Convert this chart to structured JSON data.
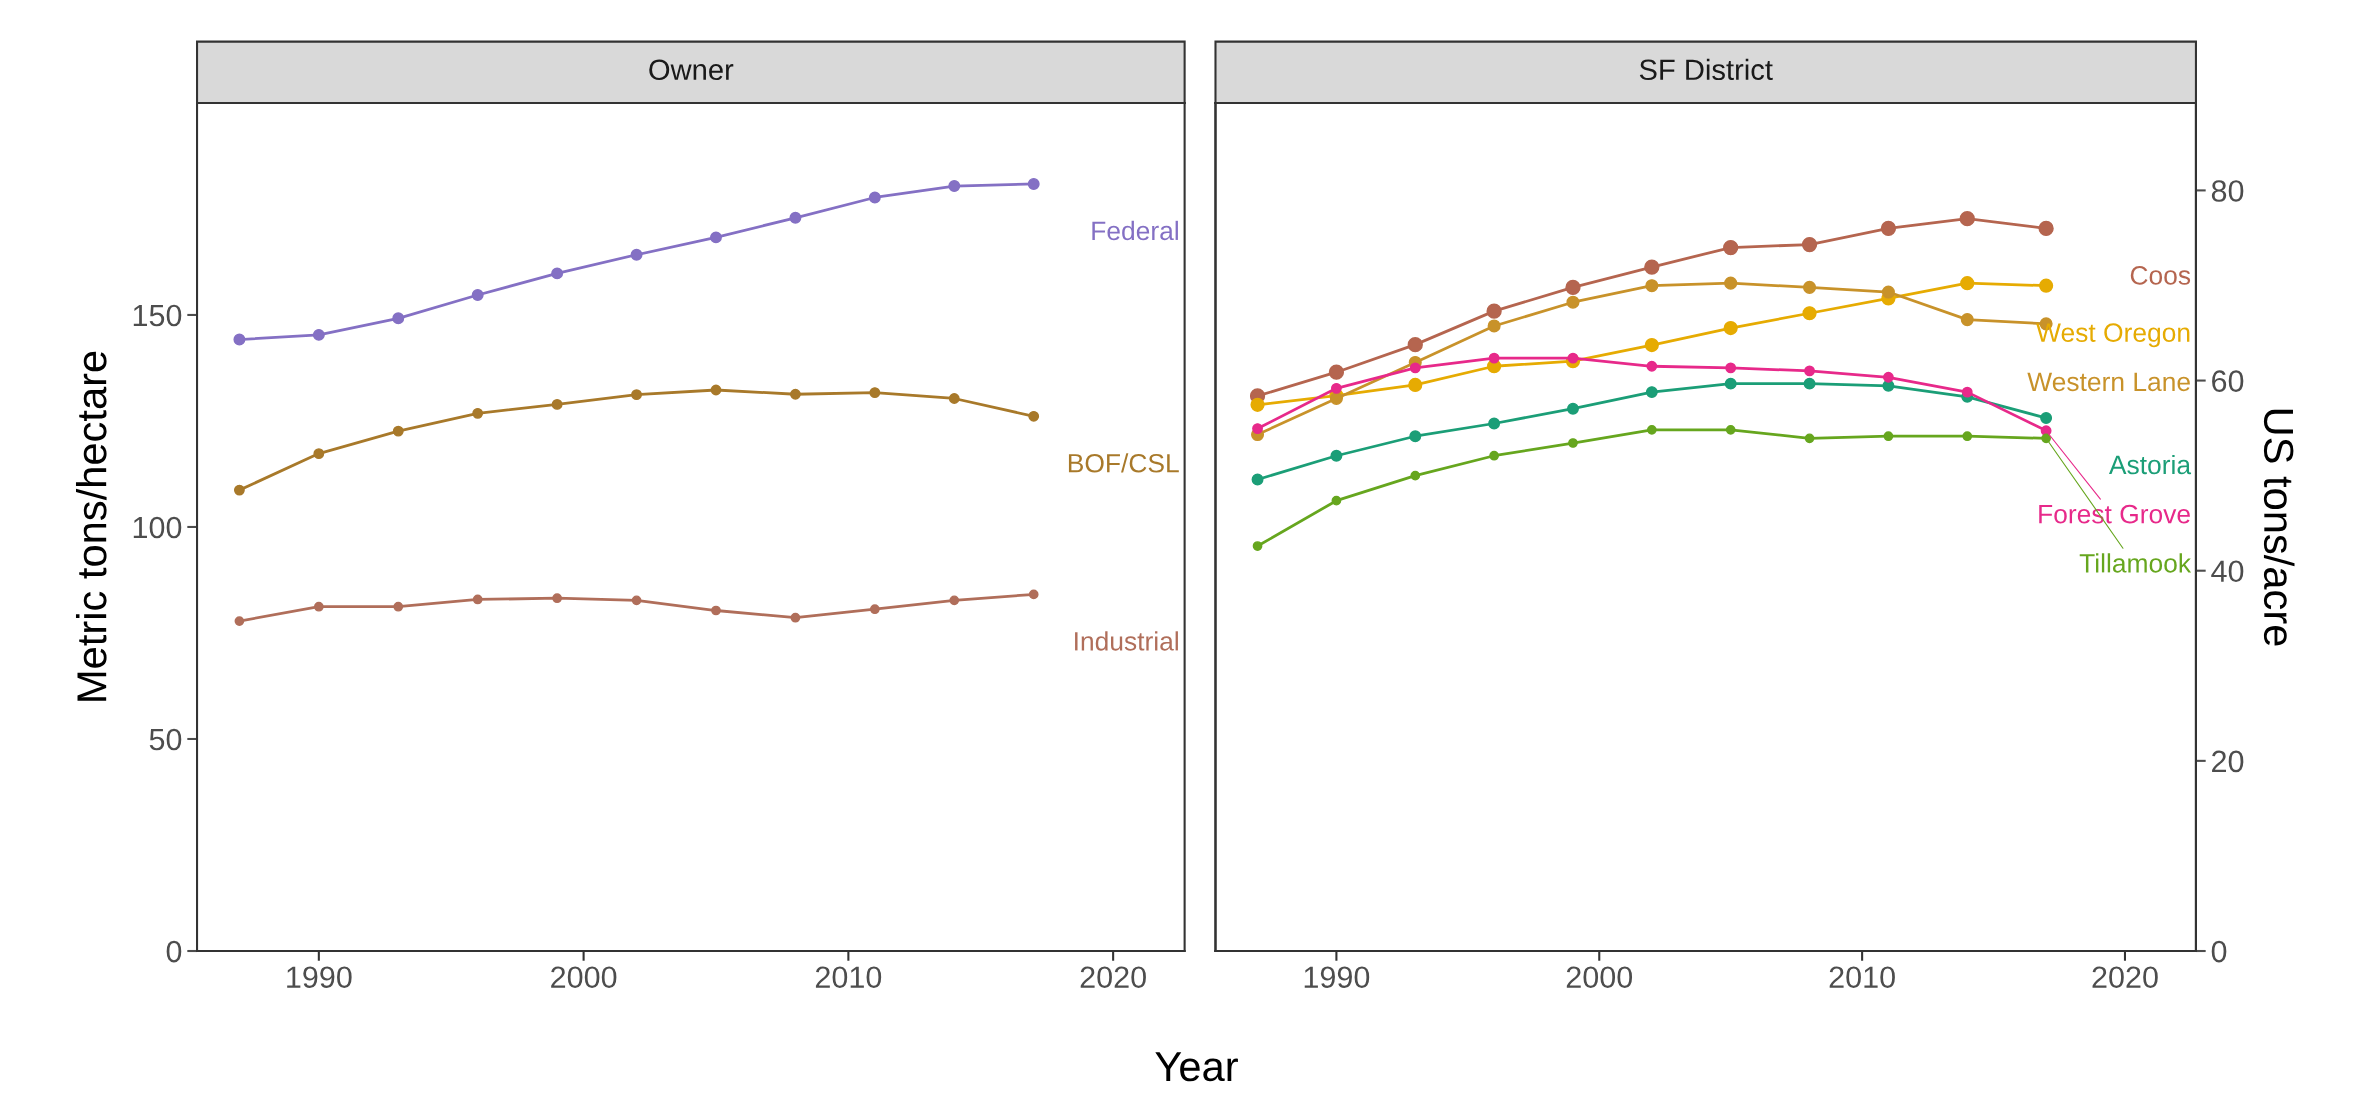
{
  "chart_data": [
    {
      "type": "line",
      "title": "Owner",
      "xlabel": "Year",
      "ylabel": "Metric tons/hectare",
      "marker": "circle",
      "line_style": "solid",
      "grid": false,
      "legend": false,
      "x": [
        1987,
        1990,
        1993,
        1996,
        1999,
        2002,
        2005,
        2008,
        2011,
        2014,
        2017
      ],
      "xlim": [
        1985.4,
        2022.7
      ],
      "xticks": [
        1990,
        2000,
        2010,
        2020
      ],
      "ylim": [
        0,
        200
      ],
      "yticks": [
        0,
        50,
        100,
        150
      ],
      "series": [
        {
          "name": "Federal",
          "color": "#8470c4",
          "values": [
            144.2,
            145.3,
            149.2,
            154.7,
            159.8,
            164.2,
            168.3,
            172.9,
            177.7,
            180.4,
            180.9
          ]
        },
        {
          "name": "BOF/CSL",
          "color": "#a8792a",
          "values": [
            108.7,
            117.3,
            122.6,
            126.8,
            128.9,
            131.2,
            132.3,
            131.3,
            131.7,
            130.3,
            126.1
          ]
        },
        {
          "name": "Industrial",
          "color": "#b06e5a",
          "values": [
            77.8,
            81.2,
            81.2,
            82.9,
            83.2,
            82.7,
            80.3,
            78.6,
            80.6,
            82.7,
            84.1
          ]
        }
      ]
    },
    {
      "type": "line",
      "title": "SF District",
      "y2label": "US tons/acre",
      "marker": "circle",
      "line_style": "solid",
      "grid": false,
      "legend": false,
      "x": [
        1987,
        1990,
        1993,
        1996,
        1999,
        2002,
        2005,
        2008,
        2011,
        2014,
        2017
      ],
      "xlim": [
        1985.4,
        2022.7
      ],
      "xticks": [
        1990,
        2000,
        2010,
        2020
      ],
      "ylim": [
        0,
        200
      ],
      "y2lim": [
        0,
        89.2
      ],
      "y2ticks": [
        0,
        20,
        40,
        60,
        80
      ],
      "series": [
        {
          "name": "Coos",
          "color": "#b5654f",
          "values": [
            130.9,
            136.5,
            143.0,
            150.9,
            156.5,
            161.3,
            165.9,
            166.6,
            170.4,
            172.7,
            170.4
          ]
        },
        {
          "name": "West Oregon",
          "color": "#e6ab02",
          "values": [
            128.8,
            131.0,
            133.5,
            137.9,
            139.1,
            142.9,
            146.9,
            150.4,
            153.9,
            157.5,
            156.9
          ]
        },
        {
          "name": "Western Lane",
          "color": "#c8922a",
          "values": [
            121.8,
            130.3,
            138.8,
            147.4,
            153.0,
            156.9,
            157.5,
            156.5,
            155.4,
            148.9,
            147.9
          ]
        },
        {
          "name": "Astoria",
          "color": "#1b9e77",
          "values": [
            111.2,
            116.8,
            121.4,
            124.4,
            127.9,
            131.8,
            133.8,
            133.8,
            133.3,
            130.7,
            125.7
          ]
        },
        {
          "name": "Forest Grove",
          "color": "#e7298a",
          "values": [
            123.2,
            132.7,
            137.5,
            139.8,
            139.8,
            137.9,
            137.5,
            136.8,
            135.3,
            131.8,
            122.7
          ]
        },
        {
          "name": "Tillamook",
          "color": "#66a61e",
          "values": [
            95.5,
            106.2,
            112.1,
            116.8,
            119.8,
            122.9,
            122.9,
            120.9,
            121.4,
            121.4,
            120.9
          ]
        }
      ]
    }
  ]
}
